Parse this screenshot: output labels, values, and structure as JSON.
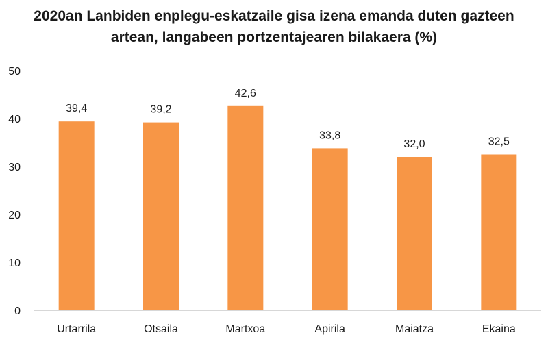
{
  "chart_data": {
    "type": "bar",
    "title_line1": "2020an Lanbiden enplegu-eskatzaile gisa izena emanda duten gazteen",
    "title_line2": "artean, langabeen portzentajearen bilakaera  (%)",
    "categories": [
      "Urtarrila",
      "Otsaila",
      "Martxoa",
      "Apirila",
      "Maiatza",
      "Ekaina"
    ],
    "values": [
      39.4,
      39.2,
      42.6,
      33.8,
      32.0,
      32.5
    ],
    "value_labels": [
      "39,4",
      "39,2",
      "42,6",
      "33,8",
      "32,0",
      "32,5"
    ],
    "ylim": [
      0,
      50
    ],
    "yticks": [
      0,
      10,
      20,
      30,
      40,
      50
    ],
    "grid": false,
    "legend": "none",
    "bar_color": "#f79646"
  }
}
